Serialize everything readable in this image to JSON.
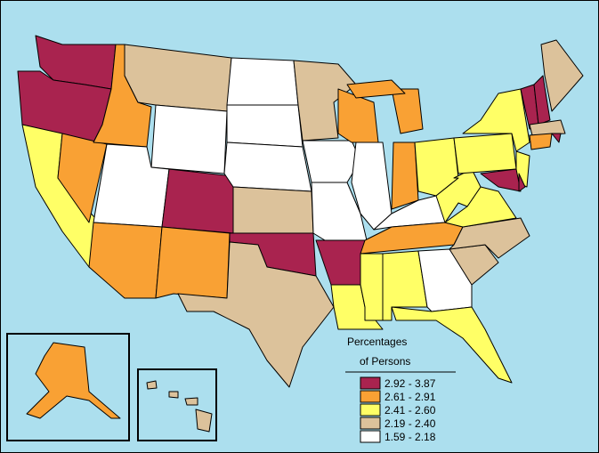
{
  "legend": {
    "title_lines": [
      "Percentages",
      "of Persons"
    ],
    "items": [
      {
        "label": "2.92 - 3.87",
        "color": "#a9234f"
      },
      {
        "label": "2.61 - 2.91",
        "color": "#f9a134"
      },
      {
        "label": "2.41 - 2.60",
        "color": "#ffff66"
      },
      {
        "label": "2.19 - 2.40",
        "color": "#dcc29b"
      },
      {
        "label": "1.59 - 2.18",
        "color": "#ffffff"
      }
    ]
  }
}
